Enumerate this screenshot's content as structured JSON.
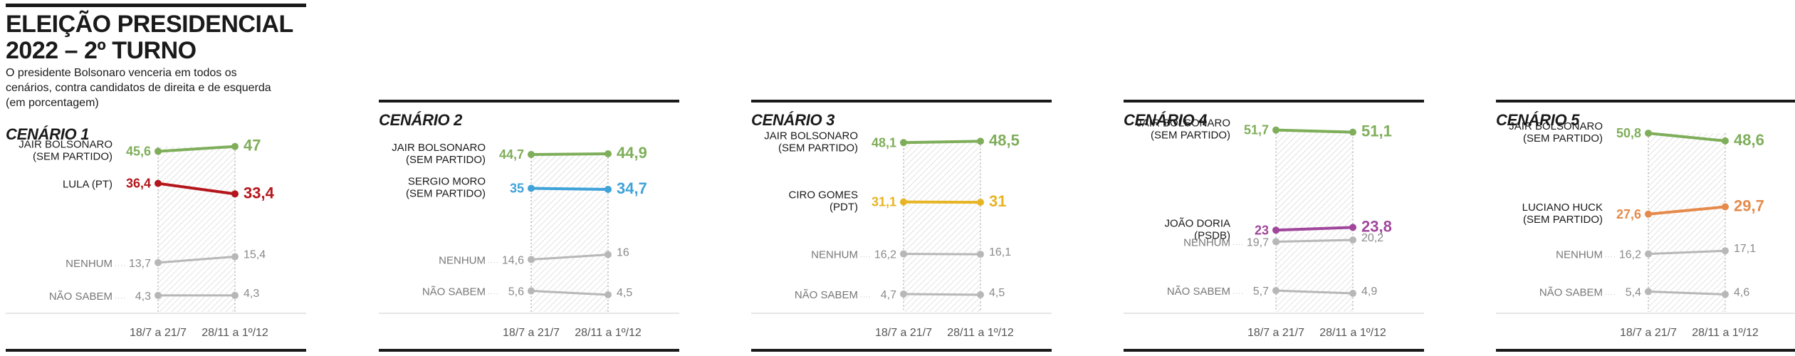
{
  "header": {
    "title_line1": "ELEIÇÃO PRESIDENCIAL",
    "title_line2": "2022 – 2º TURNO",
    "subtitle_line1": "O presidente Bolsonaro venceria em todos os",
    "subtitle_line2": "cenários, contra candidatos de direita e de esquerda",
    "subtitle_line3": "(em porcentagem)"
  },
  "colors": {
    "bolsonaro": "#7fae5a",
    "lula": "#b5161b",
    "moro": "#3fa2d9",
    "ciro": "#e7b424",
    "doria": "#a0479c",
    "huck": "#e58a4b",
    "neutral": "#b7b7b7"
  },
  "chart_data": [
    {
      "type": "line",
      "title": "CENÁRIO 1",
      "x": [
        "18/7 a 21/7",
        "28/11 a 1º/12"
      ],
      "series": [
        {
          "name": "JAIR BOLSONARO (SEM PARTIDO)",
          "label_lines": [
            "JAIR BOLSONARO",
            "(SEM PARTIDO)"
          ],
          "values": [
            45.6,
            47
          ],
          "value_labels": [
            "45,6",
            "47"
          ],
          "color": "bolsonaro"
        },
        {
          "name": "LULA (PT)",
          "label_lines": [
            "LULA (PT)"
          ],
          "values": [
            36.4,
            33.4
          ],
          "value_labels": [
            "36,4",
            "33,4"
          ],
          "color": "lula"
        },
        {
          "name": "NENHUM",
          "label_lines": [
            "NENHUM"
          ],
          "values": [
            13.7,
            15.4
          ],
          "value_labels": [
            "13,7",
            "15,4"
          ],
          "color": "neutral"
        },
        {
          "name": "NÃO SABEM",
          "label_lines": [
            "NÃO SABEM"
          ],
          "values": [
            4.3,
            4.3
          ],
          "value_labels": [
            "4,3",
            "4,3"
          ],
          "color": "neutral"
        }
      ]
    },
    {
      "type": "line",
      "title": "CENÁRIO 2",
      "x": [
        "18/7 a 21/7",
        "28/11 a 1º/12"
      ],
      "series": [
        {
          "name": "JAIR BOLSONARO (SEM PARTIDO)",
          "label_lines": [
            "JAIR BOLSONARO",
            "(SEM PARTIDO)"
          ],
          "values": [
            44.7,
            44.9
          ],
          "value_labels": [
            "44,7",
            "44,9"
          ],
          "color": "bolsonaro"
        },
        {
          "name": "SERGIO MORO (SEM PARTIDO)",
          "label_lines": [
            "SERGIO MORO",
            "(SEM PARTIDO)"
          ],
          "values": [
            35,
            34.7
          ],
          "value_labels": [
            "35",
            "34,7"
          ],
          "color": "moro"
        },
        {
          "name": "NENHUM",
          "label_lines": [
            "NENHUM"
          ],
          "values": [
            14.6,
            16
          ],
          "value_labels": [
            "14,6",
            "16"
          ],
          "color": "neutral"
        },
        {
          "name": "NÃO SABEM",
          "label_lines": [
            "NÃO SABEM"
          ],
          "values": [
            5.6,
            4.5
          ],
          "value_labels": [
            "5,6",
            "4,5"
          ],
          "color": "neutral"
        }
      ]
    },
    {
      "type": "line",
      "title": "CENÁRIO 3",
      "x": [
        "18/7 a 21/7",
        "28/11 a 1º/12"
      ],
      "series": [
        {
          "name": "JAIR BOLSONARO (SEM PARTIDO)",
          "label_lines": [
            "JAIR BOLSONARO",
            "(SEM PARTIDO)"
          ],
          "values": [
            48.1,
            48.5
          ],
          "value_labels": [
            "48,1",
            "48,5"
          ],
          "color": "bolsonaro"
        },
        {
          "name": "CIRO GOMES (PDT)",
          "label_lines": [
            "CIRO GOMES",
            "(PDT)"
          ],
          "values": [
            31.1,
            31
          ],
          "value_labels": [
            "31,1",
            "31"
          ],
          "color": "ciro"
        },
        {
          "name": "NENHUM",
          "label_lines": [
            "NENHUM"
          ],
          "values": [
            16.2,
            16.1
          ],
          "value_labels": [
            "16,2",
            "16,1"
          ],
          "color": "neutral"
        },
        {
          "name": "NÃO SABEM",
          "label_lines": [
            "NÃO SABEM"
          ],
          "values": [
            4.7,
            4.5
          ],
          "value_labels": [
            "4,7",
            "4,5"
          ],
          "color": "neutral"
        }
      ]
    },
    {
      "type": "line",
      "title": "CENÁRIO 4",
      "x": [
        "18/7 a 21/7",
        "28/11 a 1º/12"
      ],
      "series": [
        {
          "name": "JAIR BOLSONARO (SEM PARTIDO)",
          "label_lines": [
            "JAIR BOLSONARO",
            "(SEM PARTIDO)"
          ],
          "values": [
            51.7,
            51.1
          ],
          "value_labels": [
            "51,7",
            "51,1"
          ],
          "color": "bolsonaro"
        },
        {
          "name": "JOÃO DORIA (PSDB)",
          "label_lines": [
            "JOÃO DORIA",
            "(PSDB)"
          ],
          "values": [
            23,
            23.8
          ],
          "value_labels": [
            "23",
            "23,8"
          ],
          "color": "doria"
        },
        {
          "name": "NENHUM",
          "label_lines": [
            "NENHUM"
          ],
          "values": [
            19.7,
            20.2
          ],
          "value_labels": [
            "19,7",
            "20,2"
          ],
          "color": "neutral"
        },
        {
          "name": "NÃO SABEM",
          "label_lines": [
            "NÃO SABEM"
          ],
          "values": [
            5.7,
            4.9
          ],
          "value_labels": [
            "5,7",
            "4,9"
          ],
          "color": "neutral"
        }
      ]
    },
    {
      "type": "line",
      "title": "CENÁRIO 5",
      "x": [
        "18/7 a 21/7",
        "28/11 a 1º/12"
      ],
      "series": [
        {
          "name": "JAIR BOLSONARO (SEM PARTIDO)",
          "label_lines": [
            "JAIR BOLSONARO",
            "(SEM PARTIDO)"
          ],
          "values": [
            50.8,
            48.6
          ],
          "value_labels": [
            "50,8",
            "48,6"
          ],
          "color": "bolsonaro"
        },
        {
          "name": "LUCIANO HUCK (SEM PARTIDO)",
          "label_lines": [
            "LUCIANO HUCK",
            "(SEM PARTIDO)"
          ],
          "values": [
            27.6,
            29.7
          ],
          "value_labels": [
            "27,6",
            "29,7"
          ],
          "color": "huck"
        },
        {
          "name": "NENHUM",
          "label_lines": [
            "NENHUM"
          ],
          "values": [
            16.2,
            17.1
          ],
          "value_labels": [
            "16,2",
            "17,1"
          ],
          "color": "neutral"
        },
        {
          "name": "NÃO SABEM",
          "label_lines": [
            "NÃO SABEM"
          ],
          "values": [
            5.4,
            4.6
          ],
          "value_labels": [
            "5,4",
            "4,6"
          ],
          "color": "neutral"
        }
      ]
    }
  ]
}
